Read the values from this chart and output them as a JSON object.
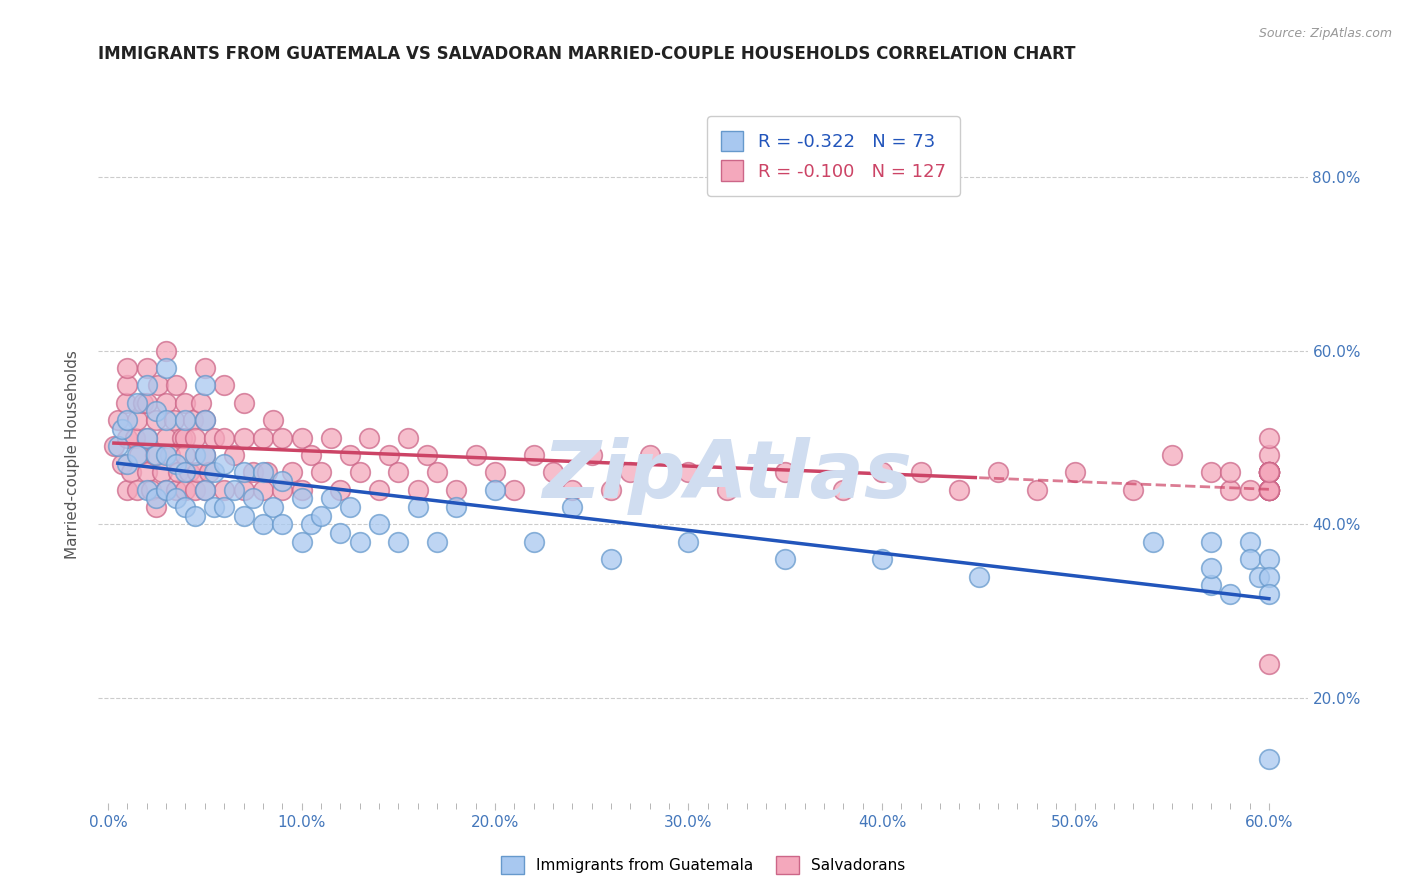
{
  "title": "IMMIGRANTS FROM GUATEMALA VS SALVADORAN MARRIED-COUPLE HOUSEHOLDS CORRELATION CHART",
  "source_text": "Source: ZipAtlas.com",
  "ylabel": "Married-couple Households",
  "xlim": [
    -0.005,
    0.62
  ],
  "ylim": [
    0.08,
    0.88
  ],
  "xtick_labels": [
    "0.0%",
    "",
    "",
    "",
    "",
    "",
    "",
    "",
    "",
    "",
    "10.0%",
    "",
    "",
    "",
    "",
    "",
    "",
    "",
    "",
    "",
    "20.0%",
    "",
    "",
    "",
    "",
    "",
    "",
    "",
    "",
    "",
    "30.0%",
    "",
    "",
    "",
    "",
    "",
    "",
    "",
    "",
    "",
    "40.0%",
    "",
    "",
    "",
    "",
    "",
    "",
    "",
    "",
    "",
    "50.0%",
    "",
    "",
    "",
    "",
    "",
    "",
    "",
    "",
    "",
    "60.0%"
  ],
  "xtick_values": [
    0.0,
    0.01,
    0.02,
    0.03,
    0.04,
    0.05,
    0.06,
    0.07,
    0.08,
    0.09,
    0.1,
    0.11,
    0.12,
    0.13,
    0.14,
    0.15,
    0.16,
    0.17,
    0.18,
    0.19,
    0.2,
    0.21,
    0.22,
    0.23,
    0.24,
    0.25,
    0.26,
    0.27,
    0.28,
    0.29,
    0.3,
    0.31,
    0.32,
    0.33,
    0.34,
    0.35,
    0.36,
    0.37,
    0.38,
    0.39,
    0.4,
    0.41,
    0.42,
    0.43,
    0.44,
    0.45,
    0.46,
    0.47,
    0.48,
    0.49,
    0.5,
    0.51,
    0.52,
    0.53,
    0.54,
    0.55,
    0.56,
    0.57,
    0.58,
    0.59,
    0.6
  ],
  "ytick_labels": [
    "20.0%",
    "40.0%",
    "60.0%",
    "80.0%"
  ],
  "ytick_values": [
    0.2,
    0.4,
    0.6,
    0.8
  ],
  "blue_R": -0.322,
  "blue_N": 73,
  "pink_R": -0.1,
  "pink_N": 127,
  "blue_color": "#a8c8f0",
  "blue_edge": "#6699cc",
  "pink_color": "#f4a8bc",
  "pink_edge": "#cc6688",
  "blue_line_color": "#2255bb",
  "pink_line_color": "#cc4466",
  "watermark_color": "#d0ddf0",
  "title_color": "#222222",
  "axis_label_color": "#555555",
  "tick_color": "#4477bb",
  "grid_color": "#cccccc",
  "legend_label1": "Immigrants from Guatemala",
  "legend_label2": "Salvadorans",
  "blue_x": [
    0.005,
    0.007,
    0.01,
    0.01,
    0.015,
    0.015,
    0.02,
    0.02,
    0.02,
    0.025,
    0.025,
    0.025,
    0.03,
    0.03,
    0.03,
    0.03,
    0.035,
    0.035,
    0.04,
    0.04,
    0.04,
    0.045,
    0.045,
    0.05,
    0.05,
    0.05,
    0.05,
    0.055,
    0.055,
    0.06,
    0.06,
    0.065,
    0.07,
    0.07,
    0.075,
    0.08,
    0.08,
    0.085,
    0.09,
    0.09,
    0.1,
    0.1,
    0.105,
    0.11,
    0.115,
    0.12,
    0.125,
    0.13,
    0.14,
    0.15,
    0.16,
    0.17,
    0.18,
    0.2,
    0.22,
    0.24,
    0.26,
    0.3,
    0.35,
    0.4,
    0.45,
    0.54,
    0.57,
    0.57,
    0.57,
    0.58,
    0.59,
    0.59,
    0.595,
    0.6,
    0.6,
    0.6,
    0.6
  ],
  "blue_y": [
    0.49,
    0.51,
    0.47,
    0.52,
    0.48,
    0.54,
    0.44,
    0.5,
    0.56,
    0.43,
    0.48,
    0.53,
    0.44,
    0.48,
    0.52,
    0.58,
    0.43,
    0.47,
    0.42,
    0.46,
    0.52,
    0.41,
    0.48,
    0.44,
    0.48,
    0.52,
    0.56,
    0.42,
    0.46,
    0.42,
    0.47,
    0.44,
    0.41,
    0.46,
    0.43,
    0.4,
    0.46,
    0.42,
    0.4,
    0.45,
    0.38,
    0.43,
    0.4,
    0.41,
    0.43,
    0.39,
    0.42,
    0.38,
    0.4,
    0.38,
    0.42,
    0.38,
    0.42,
    0.44,
    0.38,
    0.42,
    0.36,
    0.38,
    0.36,
    0.36,
    0.34,
    0.38,
    0.33,
    0.38,
    0.35,
    0.32,
    0.38,
    0.36,
    0.34,
    0.13,
    0.36,
    0.34,
    0.32
  ],
  "pink_x": [
    0.003,
    0.005,
    0.007,
    0.009,
    0.01,
    0.01,
    0.01,
    0.01,
    0.012,
    0.014,
    0.015,
    0.015,
    0.016,
    0.018,
    0.02,
    0.02,
    0.02,
    0.02,
    0.022,
    0.024,
    0.025,
    0.025,
    0.026,
    0.028,
    0.03,
    0.03,
    0.03,
    0.03,
    0.032,
    0.034,
    0.035,
    0.035,
    0.036,
    0.038,
    0.04,
    0.04,
    0.04,
    0.04,
    0.042,
    0.044,
    0.045,
    0.045,
    0.046,
    0.048,
    0.05,
    0.05,
    0.05,
    0.05,
    0.052,
    0.055,
    0.06,
    0.06,
    0.06,
    0.065,
    0.07,
    0.07,
    0.07,
    0.075,
    0.08,
    0.08,
    0.082,
    0.085,
    0.09,
    0.09,
    0.095,
    0.1,
    0.1,
    0.105,
    0.11,
    0.115,
    0.12,
    0.125,
    0.13,
    0.135,
    0.14,
    0.145,
    0.15,
    0.155,
    0.16,
    0.165,
    0.17,
    0.18,
    0.19,
    0.2,
    0.21,
    0.22,
    0.23,
    0.24,
    0.25,
    0.26,
    0.27,
    0.28,
    0.3,
    0.32,
    0.35,
    0.38,
    0.4,
    0.42,
    0.44,
    0.46,
    0.48,
    0.5,
    0.53,
    0.55,
    0.57,
    0.58,
    0.58,
    0.59,
    0.6,
    0.6,
    0.6,
    0.6,
    0.6,
    0.6,
    0.6,
    0.6,
    0.6,
    0.6,
    0.6,
    0.6,
    0.6,
    0.6,
    0.6,
    0.6,
    0.6,
    0.6,
    0.6
  ],
  "pink_y": [
    0.49,
    0.52,
    0.47,
    0.54,
    0.44,
    0.5,
    0.56,
    0.58,
    0.46,
    0.5,
    0.44,
    0.52,
    0.48,
    0.54,
    0.46,
    0.5,
    0.54,
    0.58,
    0.44,
    0.48,
    0.42,
    0.52,
    0.56,
    0.46,
    0.44,
    0.5,
    0.54,
    0.6,
    0.48,
    0.52,
    0.44,
    0.56,
    0.46,
    0.5,
    0.44,
    0.5,
    0.54,
    0.48,
    0.46,
    0.52,
    0.44,
    0.5,
    0.46,
    0.54,
    0.44,
    0.48,
    0.52,
    0.58,
    0.46,
    0.5,
    0.44,
    0.5,
    0.56,
    0.48,
    0.44,
    0.5,
    0.54,
    0.46,
    0.44,
    0.5,
    0.46,
    0.52,
    0.44,
    0.5,
    0.46,
    0.44,
    0.5,
    0.48,
    0.46,
    0.5,
    0.44,
    0.48,
    0.46,
    0.5,
    0.44,
    0.48,
    0.46,
    0.5,
    0.44,
    0.48,
    0.46,
    0.44,
    0.48,
    0.46,
    0.44,
    0.48,
    0.46,
    0.44,
    0.48,
    0.44,
    0.46,
    0.48,
    0.46,
    0.44,
    0.46,
    0.44,
    0.46,
    0.46,
    0.44,
    0.46,
    0.44,
    0.46,
    0.44,
    0.48,
    0.46,
    0.44,
    0.46,
    0.44,
    0.46,
    0.44,
    0.46,
    0.48,
    0.46,
    0.44,
    0.46,
    0.44,
    0.46,
    0.44,
    0.46,
    0.44,
    0.24,
    0.46,
    0.44,
    0.46,
    0.44,
    0.46,
    0.5
  ]
}
